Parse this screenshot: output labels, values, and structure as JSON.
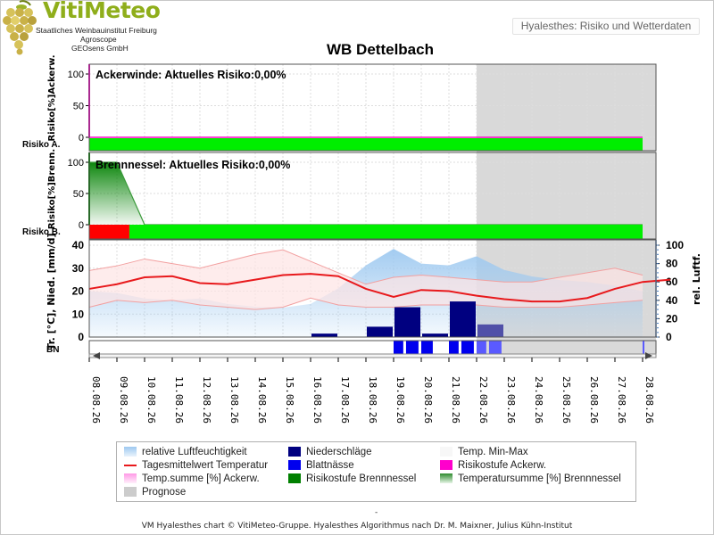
{
  "header": {
    "logo_title": "VitiMeteo",
    "logo_line1": "Staatliches Weinbauinstitut Freiburg",
    "logo_line2": "Agroscope",
    "logo_line3": "GEOsens GmbH",
    "app_title": "Hyalesthes: Risiko und Wetterdaten"
  },
  "colors": {
    "risk_green": "#00ee00",
    "risk_red": "#ff0000",
    "forecast_gray": "#cccccc",
    "ackerwinde_magenta": "#ff00cc",
    "brennnessel_green": "#008000",
    "humidity_blue": "#9ec9f0",
    "precip_navy": "#000080",
    "leafwet_blue": "#0000ee",
    "temp_red": "#e8191c",
    "temp_minmax_fill": "#fde4e4"
  },
  "chart_data": {
    "title": "WB Dettelbach",
    "type": "line",
    "x": [
      "08.08.26",
      "09.08.26",
      "10.08.26",
      "11.08.26",
      "12.08.26",
      "13.08.26",
      "14.08.26",
      "15.08.26",
      "16.08.26",
      "17.08.26",
      "18.08.26",
      "19.08.26",
      "20.08.26",
      "21.08.26",
      "22.08.26",
      "23.08.26",
      "24.08.26",
      "25.08.26",
      "26.08.26",
      "27.08.26",
      "28.08.26"
    ],
    "forecast_start": "22.08.26",
    "panels": {
      "ackerwinde": {
        "annotation": "Ackerwinde: Aktuelles Risiko:0,00%",
        "ylabel": "Risiko[%]Ackerw.",
        "ylim": [
          0,
          100
        ],
        "yticks": [
          "100",
          "50",
          "0"
        ],
        "strip_label": "Risiko A.",
        "temp_sum_percent": [
          0,
          0,
          0,
          0,
          0,
          0,
          0,
          0,
          0,
          0,
          0,
          0,
          0,
          0,
          0,
          0,
          0,
          0,
          0,
          0,
          0
        ],
        "risk_levels": [
          {
            "from": "08.08.26",
            "to": "28.08.26",
            "level": "green"
          }
        ]
      },
      "brennnessel": {
        "annotation": "Brennnessel: Aktuelles Risiko:0,00%",
        "ylabel": "Risiko[%]Brenn.",
        "ylim": [
          0,
          100
        ],
        "yticks": [
          "100",
          "50",
          "0"
        ],
        "strip_label": "Risiko B.",
        "temp_sum_percent": [
          100,
          100,
          0,
          0,
          0,
          0,
          0,
          0,
          0,
          0,
          0,
          0,
          0,
          0,
          0,
          0,
          0,
          0,
          0,
          0,
          0
        ],
        "risk_levels": [
          {
            "from": "08.08.26",
            "to": "09.08.26",
            "level": "red"
          },
          {
            "from": "09.08.26",
            "to": "28.08.26",
            "level": "green"
          }
        ]
      },
      "weather": {
        "ylabel_left": "Tr. [°C], Nied. [mm/d]",
        "ylabel_right": "rel. Luftf.",
        "ylim_left": [
          0,
          40
        ],
        "yticks_left": [
          "40",
          "30",
          "20",
          "10",
          "0"
        ],
        "ylim_right": [
          0,
          100
        ],
        "yticks_right": [
          "100",
          "80",
          "60",
          "40",
          "20",
          "0"
        ],
        "strip_label": "BN",
        "temp_mean": [
          21,
          23,
          26,
          26.5,
          23.5,
          23,
          25,
          27,
          27.5,
          26.5,
          21,
          17.5,
          20.5,
          20,
          18,
          16.5,
          15.5,
          15.5,
          17,
          21,
          24,
          25
        ],
        "temp_mean_x_offset": 0.5,
        "temp_max": [
          29,
          31,
          34,
          32,
          30,
          33,
          36,
          38,
          33,
          28,
          23,
          26,
          27,
          26,
          25,
          24,
          24,
          26,
          28,
          30,
          27
        ],
        "temp_min": [
          13,
          16,
          15,
          16,
          14,
          13,
          12,
          13,
          17,
          14,
          13,
          13,
          14,
          14,
          14,
          13,
          13,
          13,
          14,
          15,
          16
        ],
        "rel_humidity": [
          50,
          48,
          42,
          40,
          42,
          36,
          33,
          32,
          36,
          53,
          78,
          96,
          80,
          78,
          88,
          73,
          66,
          62,
          60,
          56,
          50
        ],
        "precipitation_mm": [
          0,
          0,
          0,
          0,
          0,
          0,
          0,
          0,
          1.5,
          0,
          4.5,
          13,
          1.5,
          15.5,
          5.5,
          0,
          0,
          0,
          0,
          0,
          0
        ],
        "leaf_wetness_hours": [
          0,
          0,
          0,
          0,
          0,
          0,
          0,
          0,
          0,
          0,
          0,
          14,
          10,
          14,
          14,
          0,
          0,
          0,
          0,
          0,
          1
        ]
      }
    },
    "legend": [
      {
        "key": "humidity",
        "label": "relative Luftfeuchtigkeit"
      },
      {
        "key": "precip",
        "label": "Niederschläge"
      },
      {
        "key": "minmax",
        "label": "Temp. Min-Max"
      },
      {
        "key": "tmean",
        "label": "Tagesmittelwert Temperatur"
      },
      {
        "key": "leafwet",
        "label": "Blattnässe"
      },
      {
        "key": "risk_ack",
        "label": "Risikostufe Ackerw."
      },
      {
        "key": "tsum_ack",
        "label": "Temp.summe [%] Ackerw."
      },
      {
        "key": "risk_brenn",
        "label": "Risikostufe Brennnessel"
      },
      {
        "key": "tsum_brenn",
        "label": "Temperatursumme [%] Brennnessel"
      },
      {
        "key": "forecast",
        "label": "Prognose"
      }
    ]
  },
  "footer": {
    "dash": "-",
    "credit": "VM Hyalesthes chart © VitiMeteo-Gruppe. Hyalesthes Algorithmus nach Dr. M. Maixner, Julius Kühn-Institut"
  }
}
